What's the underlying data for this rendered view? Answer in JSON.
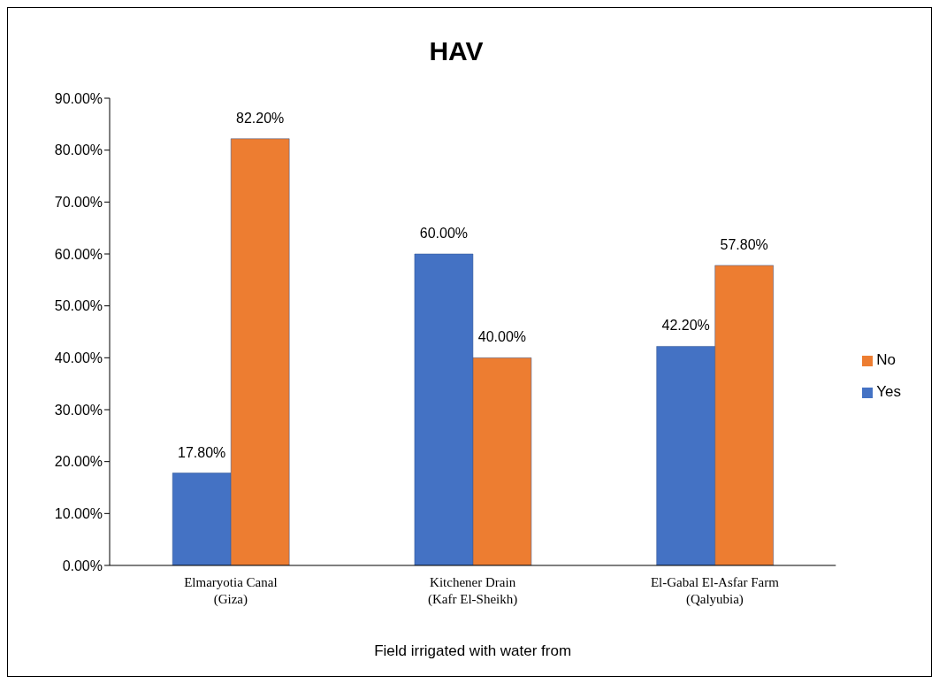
{
  "chart_data": {
    "type": "bar",
    "title": "HAV",
    "xlabel": "Field irrigated with water from",
    "categories": [
      "Elmaryotia Canal\n(Giza)",
      "Kitchener Drain\n(Kafr El-Sheikh)",
      "El-Gabal El-Asfar Farm\n(Qalyubia)"
    ],
    "series": [
      {
        "name": "Yes",
        "color": "#4472c4",
        "values": [
          17.8,
          60,
          42.2
        ],
        "value_labels": [
          "17.80%",
          "60.00%",
          "42.20%"
        ]
      },
      {
        "name": "No",
        "color": "#ed7d31",
        "values": [
          82.2,
          40,
          57.8
        ],
        "value_labels": [
          "82.20%",
          "40.00%",
          "57.80%"
        ]
      }
    ],
    "ylim": [
      0,
      90
    ],
    "yticks": [
      {
        "value": 0,
        "label": "0.00%"
      },
      {
        "value": 10,
        "label": "10.00%"
      },
      {
        "value": 20,
        "label": "20.00%"
      },
      {
        "value": 30,
        "label": "30.00%"
      },
      {
        "value": 40,
        "label": "40.00%"
      },
      {
        "value": 50,
        "label": "50.00%"
      },
      {
        "value": 60,
        "label": "60.00%"
      },
      {
        "value": 70,
        "label": "70.00%"
      },
      {
        "value": 80,
        "label": "80.00%"
      },
      {
        "value": 90,
        "label": "90.00%"
      }
    ],
    "grid": false,
    "legend": "right"
  }
}
